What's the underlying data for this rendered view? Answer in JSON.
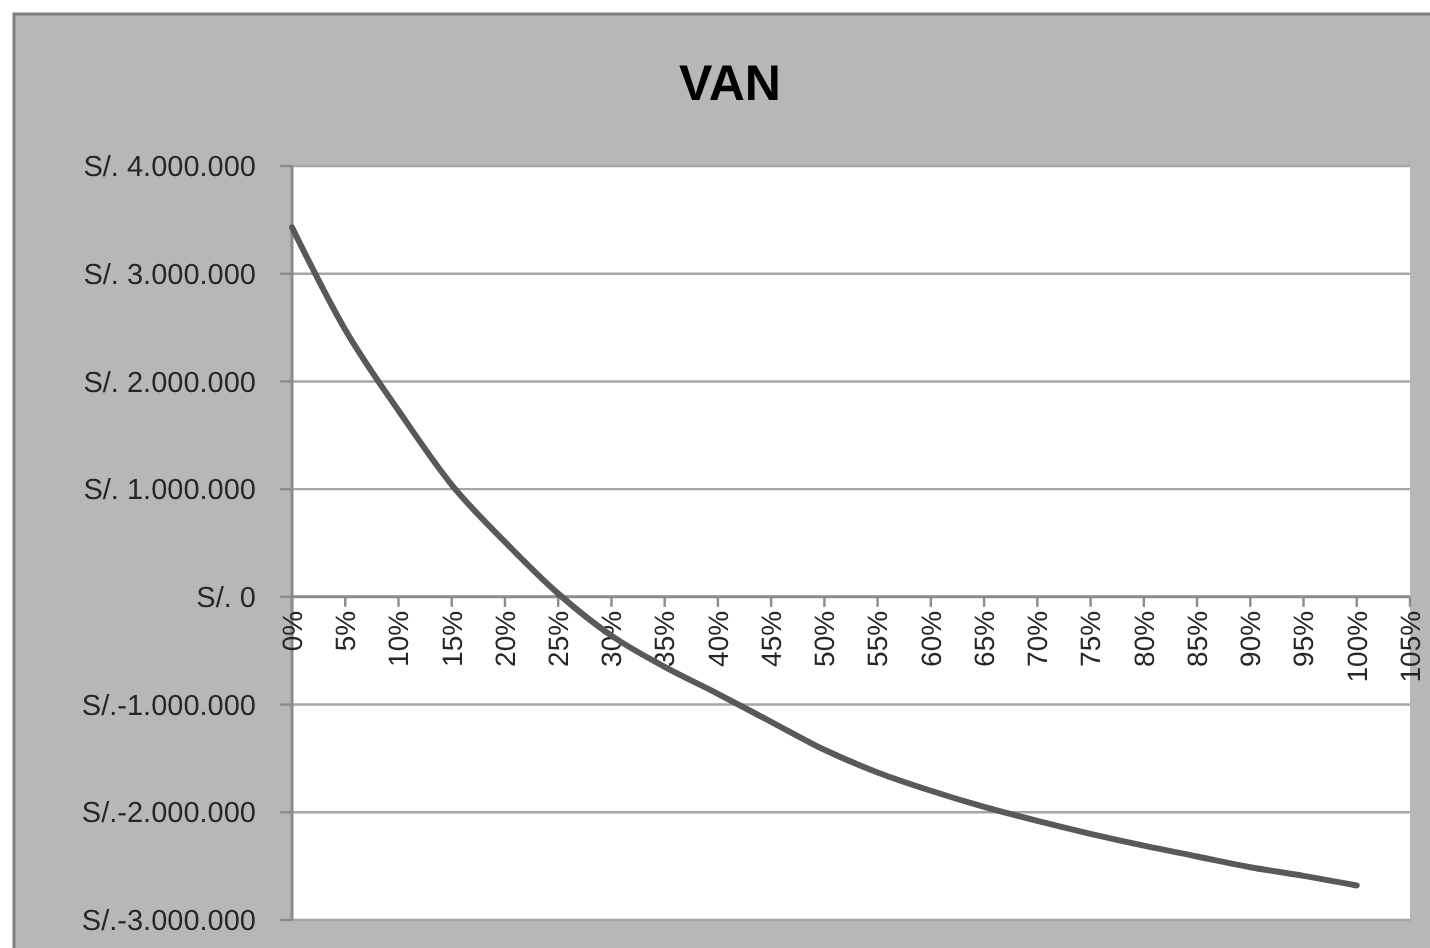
{
  "chart_data": {
    "type": "line",
    "title": "VAN",
    "x": [
      0,
      5,
      10,
      15,
      20,
      25,
      30,
      35,
      40,
      45,
      50,
      55,
      60,
      65,
      70,
      75,
      80,
      85,
      90,
      95,
      100
    ],
    "series": [
      {
        "color": "#595959",
        "values": [
          3430000,
          2480000,
          1730000,
          1040000,
          510000,
          30000,
          -360000,
          -650000,
          -900000,
          -1160000,
          -1420000,
          -1630000,
          -1800000,
          -1950000,
          -2080000,
          -2200000,
          -2310000,
          -2410000,
          -2510000,
          -2590000,
          -2680000
        ]
      }
    ],
    "xlim": [
      0,
      105
    ],
    "xticks": [
      {
        "value": 0,
        "label": "0%"
      },
      {
        "value": 5,
        "label": "5%"
      },
      {
        "value": 10,
        "label": "10%"
      },
      {
        "value": 15,
        "label": "15%"
      },
      {
        "value": 20,
        "label": "20%"
      },
      {
        "value": 25,
        "label": "25%"
      },
      {
        "value": 30,
        "label": "30%"
      },
      {
        "value": 35,
        "label": "35%"
      },
      {
        "value": 40,
        "label": "40%"
      },
      {
        "value": 45,
        "label": "45%"
      },
      {
        "value": 50,
        "label": "50%"
      },
      {
        "value": 55,
        "label": "55%"
      },
      {
        "value": 60,
        "label": "60%"
      },
      {
        "value": 65,
        "label": "65%"
      },
      {
        "value": 70,
        "label": "70%"
      },
      {
        "value": 75,
        "label": "75%"
      },
      {
        "value": 80,
        "label": "80%"
      },
      {
        "value": 85,
        "label": "85%"
      },
      {
        "value": 90,
        "label": "90%"
      },
      {
        "value": 95,
        "label": "95%"
      },
      {
        "value": 100,
        "label": "100%"
      },
      {
        "value": 105,
        "label": "105%"
      }
    ],
    "ylim": [
      -3000000,
      4000000
    ],
    "yticks": [
      {
        "value": 4000000,
        "label": "S/. 4.000.000"
      },
      {
        "value": 3000000,
        "label": "S/. 3.000.000"
      },
      {
        "value": 2000000,
        "label": "S/. 2.000.000"
      },
      {
        "value": 1000000,
        "label": "S/. 1.000.000"
      },
      {
        "value": 0,
        "label": "S/. 0"
      },
      {
        "value": -1000000,
        "label": "S/.-1.000.000"
      },
      {
        "value": -2000000,
        "label": "S/.-2.000.000"
      },
      {
        "value": -3000000,
        "label": "S/.-3.000.000"
      }
    ],
    "grid": "y",
    "marker": "none",
    "line_style": "solid"
  }
}
